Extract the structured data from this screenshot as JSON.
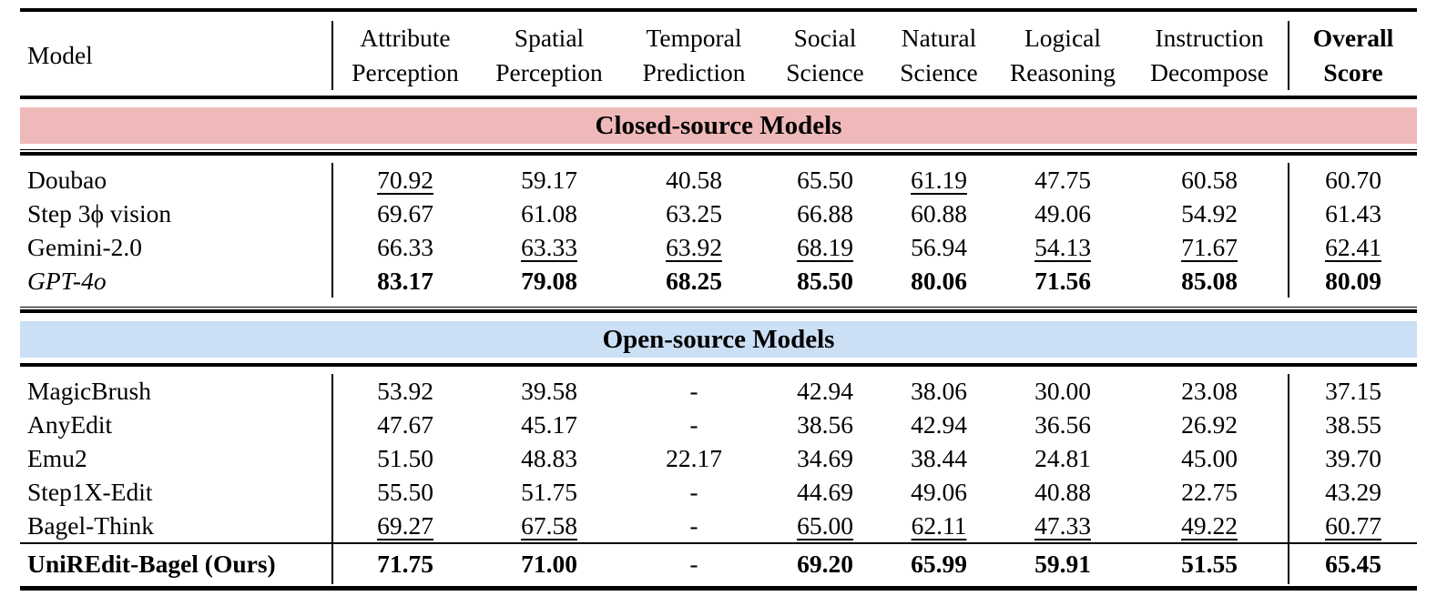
{
  "colors": {
    "closed_band": "#f0b9b9",
    "open_band": "#cbdff5",
    "rule": "#000000",
    "background": "#ffffff"
  },
  "table": {
    "header": {
      "model_label": "Model",
      "columns": [
        {
          "line1": "Attribute",
          "line2": "Perception"
        },
        {
          "line1": "Spatial",
          "line2": "Perception"
        },
        {
          "line1": "Temporal",
          "line2": "Prediction"
        },
        {
          "line1": "Social",
          "line2": "Science"
        },
        {
          "line1": "Natural",
          "line2": "Science"
        },
        {
          "line1": "Logical",
          "line2": "Reasoning"
        },
        {
          "line1": "Instruction",
          "line2": "Decompose"
        }
      ],
      "overall": {
        "line1": "Overall",
        "line2": "Score"
      }
    },
    "sections": [
      {
        "title": "Closed-source Models",
        "band_color": "#f0b9b9",
        "rows": [
          {
            "model": "Doubao",
            "style": "plain",
            "cells": [
              {
                "t": "70.92",
                "s": "u"
              },
              {
                "t": "59.17",
                "s": ""
              },
              {
                "t": "40.58",
                "s": ""
              },
              {
                "t": "65.50",
                "s": ""
              },
              {
                "t": "61.19",
                "s": "u"
              },
              {
                "t": "47.75",
                "s": ""
              },
              {
                "t": "60.58",
                "s": ""
              },
              {
                "t": "60.70",
                "s": ""
              }
            ]
          },
          {
            "model": "Step 3ϕ vision",
            "style": "plain",
            "cells": [
              {
                "t": "69.67",
                "s": ""
              },
              {
                "t": "61.08",
                "s": ""
              },
              {
                "t": "63.25",
                "s": ""
              },
              {
                "t": "66.88",
                "s": ""
              },
              {
                "t": "60.88",
                "s": ""
              },
              {
                "t": "49.06",
                "s": ""
              },
              {
                "t": "54.92",
                "s": ""
              },
              {
                "t": "61.43",
                "s": ""
              }
            ]
          },
          {
            "model": "Gemini-2.0",
            "style": "plain",
            "cells": [
              {
                "t": "66.33",
                "s": ""
              },
              {
                "t": "63.33",
                "s": "u"
              },
              {
                "t": "63.92",
                "s": "u"
              },
              {
                "t": "68.19",
                "s": "u"
              },
              {
                "t": "56.94",
                "s": ""
              },
              {
                "t": "54.13",
                "s": "u"
              },
              {
                "t": "71.67",
                "s": "u"
              },
              {
                "t": "62.41",
                "s": "u"
              }
            ]
          },
          {
            "model": "GPT-4o",
            "style": "italic",
            "cells": [
              {
                "t": "83.17",
                "s": "b"
              },
              {
                "t": "79.08",
                "s": "b"
              },
              {
                "t": "68.25",
                "s": "b"
              },
              {
                "t": "85.50",
                "s": "b"
              },
              {
                "t": "80.06",
                "s": "b"
              },
              {
                "t": "71.56",
                "s": "b"
              },
              {
                "t": "85.08",
                "s": "b"
              },
              {
                "t": "80.09",
                "s": "b"
              }
            ]
          }
        ]
      },
      {
        "title": "Open-source Models",
        "band_color": "#cbdff5",
        "rows": [
          {
            "model": "MagicBrush",
            "style": "plain",
            "cells": [
              {
                "t": "53.92",
                "s": ""
              },
              {
                "t": "39.58",
                "s": ""
              },
              {
                "t": "-",
                "s": ""
              },
              {
                "t": "42.94",
                "s": ""
              },
              {
                "t": "38.06",
                "s": ""
              },
              {
                "t": "30.00",
                "s": ""
              },
              {
                "t": "23.08",
                "s": ""
              },
              {
                "t": "37.15",
                "s": ""
              }
            ]
          },
          {
            "model": "AnyEdit",
            "style": "plain",
            "cells": [
              {
                "t": "47.67",
                "s": ""
              },
              {
                "t": "45.17",
                "s": ""
              },
              {
                "t": "-",
                "s": ""
              },
              {
                "t": "38.56",
                "s": ""
              },
              {
                "t": "42.94",
                "s": ""
              },
              {
                "t": "36.56",
                "s": ""
              },
              {
                "t": "26.92",
                "s": ""
              },
              {
                "t": "38.55",
                "s": ""
              }
            ]
          },
          {
            "model": "Emu2",
            "style": "plain",
            "cells": [
              {
                "t": "51.50",
                "s": ""
              },
              {
                "t": "48.83",
                "s": ""
              },
              {
                "t": "22.17",
                "s": ""
              },
              {
                "t": "34.69",
                "s": ""
              },
              {
                "t": "38.44",
                "s": ""
              },
              {
                "t": "24.81",
                "s": ""
              },
              {
                "t": "45.00",
                "s": ""
              },
              {
                "t": "39.70",
                "s": ""
              }
            ]
          },
          {
            "model": "Step1X-Edit",
            "style": "plain",
            "cells": [
              {
                "t": "55.50",
                "s": ""
              },
              {
                "t": "51.75",
                "s": ""
              },
              {
                "t": "-",
                "s": ""
              },
              {
                "t": "44.69",
                "s": ""
              },
              {
                "t": "49.06",
                "s": ""
              },
              {
                "t": "40.88",
                "s": ""
              },
              {
                "t": "22.75",
                "s": ""
              },
              {
                "t": "43.29",
                "s": ""
              }
            ]
          },
          {
            "model": "Bagel-Think",
            "style": "plain",
            "cells": [
              {
                "t": "69.27",
                "s": "u"
              },
              {
                "t": "67.58",
                "s": "u"
              },
              {
                "t": "-",
                "s": ""
              },
              {
                "t": "65.00",
                "s": "u"
              },
              {
                "t": "62.11",
                "s": "u"
              },
              {
                "t": "47.33",
                "s": "u"
              },
              {
                "t": "49.22",
                "s": "u"
              },
              {
                "t": "60.77",
                "s": "u"
              }
            ]
          },
          {
            "model": "UniREdit-Bagel (Ours)",
            "style": "bold",
            "sep_above": true,
            "tall": true,
            "cells": [
              {
                "t": "71.75",
                "s": "b"
              },
              {
                "t": "71.00",
                "s": "b"
              },
              {
                "t": "-",
                "s": ""
              },
              {
                "t": "69.20",
                "s": "b"
              },
              {
                "t": "65.99",
                "s": "b"
              },
              {
                "t": "59.91",
                "s": "b"
              },
              {
                "t": "51.55",
                "s": "b"
              },
              {
                "t": "65.45",
                "s": "b"
              }
            ]
          }
        ]
      }
    ]
  }
}
